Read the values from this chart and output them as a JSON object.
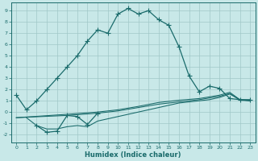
{
  "title": "",
  "xlabel": "Humidex (Indice chaleur)",
  "ylabel": "",
  "xlim": [
    -0.5,
    23.5
  ],
  "ylim": [
    -2.7,
    9.7
  ],
  "xticks": [
    0,
    1,
    2,
    3,
    4,
    5,
    6,
    7,
    8,
    9,
    10,
    11,
    12,
    13,
    14,
    15,
    16,
    17,
    18,
    19,
    20,
    21,
    22,
    23
  ],
  "yticks": [
    -2,
    -1,
    0,
    1,
    2,
    3,
    4,
    5,
    6,
    7,
    8,
    9
  ],
  "background_color": "#c8e8e8",
  "grid_color": "#a0c8c8",
  "line_color": "#1a6b6b",
  "curve1_x": [
    0,
    1,
    2,
    3,
    4,
    5,
    6,
    7,
    8,
    9,
    10,
    11,
    12,
    13,
    14,
    15,
    16,
    17,
    18,
    19,
    20,
    21,
    22,
    23
  ],
  "curve1_y": [
    1.5,
    0.2,
    1.0,
    2.0,
    3.0,
    4.0,
    5.0,
    6.3,
    7.3,
    7.0,
    8.7,
    9.2,
    8.7,
    9.0,
    8.2,
    7.7,
    5.8,
    3.2,
    1.8,
    2.3,
    2.1,
    1.2,
    1.1,
    1.1
  ],
  "curve2_x": [
    2,
    3,
    4,
    5,
    6,
    7,
    8
  ],
  "curve2_y": [
    -1.2,
    -1.8,
    -1.7,
    -0.3,
    -0.4,
    -1.1,
    -0.1
  ],
  "line3_x": [
    1,
    2,
    3,
    4,
    5,
    6,
    7,
    8,
    9,
    10,
    11,
    12,
    13,
    14,
    15,
    16,
    17,
    18,
    19,
    20,
    21,
    22,
    23
  ],
  "line3_y": [
    -0.5,
    -1.2,
    -1.5,
    -1.5,
    -1.3,
    -1.2,
    -1.3,
    -0.8,
    -0.6,
    -0.4,
    -0.2,
    0.0,
    0.2,
    0.4,
    0.6,
    0.8,
    0.9,
    1.0,
    1.1,
    1.3,
    1.6,
    1.1,
    1.0
  ],
  "line4_x": [
    0,
    5,
    8,
    10,
    12,
    14,
    16,
    18,
    20,
    21,
    22,
    23
  ],
  "line4_y": [
    -0.5,
    -0.3,
    -0.1,
    0.1,
    0.4,
    0.7,
    0.9,
    1.1,
    1.4,
    1.65,
    1.05,
    1.0
  ],
  "line5_x": [
    0,
    5,
    8,
    10,
    12,
    14,
    16,
    18,
    20,
    21,
    22,
    23
  ],
  "line5_y": [
    -0.5,
    -0.2,
    0.0,
    0.2,
    0.5,
    0.85,
    1.05,
    1.2,
    1.5,
    1.75,
    1.1,
    1.05
  ]
}
